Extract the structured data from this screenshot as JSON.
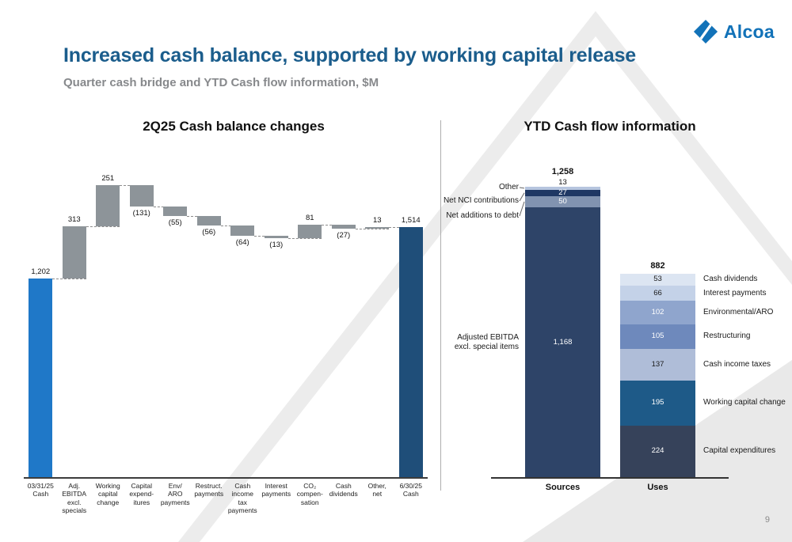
{
  "page": {
    "logo_text": "Alcoa",
    "title": "Increased cash balance, supported by working capital release",
    "subtitle": "Quarter cash bridge and YTD Cash flow information, $M",
    "page_number": "9"
  },
  "colors": {
    "title_blue": "#1B5D8C",
    "subtitle_gray": "#87898C",
    "logo_blue": "#1272B8",
    "waterfall_start": "#1F78C8",
    "waterfall_delta": "#8D9499",
    "waterfall_end": "#1F4E79"
  },
  "chart_data": [
    {
      "type": "waterfall",
      "title": "2Q25 Cash balance changes",
      "unit": "$M",
      "bars": [
        {
          "lines": [
            "03/31/25",
            "Cash"
          ],
          "value": 1202,
          "display": "1,202",
          "kind": "total",
          "color": "#1F78C8"
        },
        {
          "lines": [
            "Adj.",
            "EBITDA",
            "excl.",
            "specials"
          ],
          "value": 313,
          "display": "313",
          "kind": "delta",
          "color": "#8D9499"
        },
        {
          "lines": [
            "Working",
            "capital",
            "change"
          ],
          "value": 251,
          "display": "251",
          "kind": "delta",
          "color": "#8D9499"
        },
        {
          "lines": [
            "Capital",
            "expend-",
            "itures"
          ],
          "value": -131,
          "display": "(131)",
          "kind": "delta",
          "color": "#8D9499"
        },
        {
          "lines": [
            "Env/",
            "ARO",
            "payments"
          ],
          "value": -55,
          "display": "(55)",
          "kind": "delta",
          "color": "#8D9499"
        },
        {
          "lines": [
            "Restruct.",
            "payments"
          ],
          "value": -56,
          "display": "(56)",
          "kind": "delta",
          "color": "#8D9499"
        },
        {
          "lines": [
            "Cash",
            "income",
            "tax",
            "payments"
          ],
          "value": -64,
          "display": "(64)",
          "kind": "delta",
          "color": "#8D9499"
        },
        {
          "lines": [
            "Interest",
            "payments"
          ],
          "value": -13,
          "display": "(13)",
          "kind": "delta",
          "color": "#8D9499"
        },
        {
          "lines": [
            "CO₂",
            "compen-",
            "sation"
          ],
          "value": 81,
          "display": "81",
          "kind": "delta",
          "color": "#8D9499"
        },
        {
          "lines": [
            "Cash",
            "dividends"
          ],
          "value": -27,
          "display": "(27)",
          "kind": "delta",
          "color": "#8D9499"
        },
        {
          "lines": [
            "Other,",
            "net"
          ],
          "value": 13,
          "display": "13",
          "kind": "delta",
          "color": "#8D9499"
        },
        {
          "lines": [
            "6/30/25",
            "Cash"
          ],
          "value": 1514,
          "display": "1,514",
          "kind": "total",
          "color": "#1F4E79"
        }
      ]
    },
    {
      "type": "stacked-bar",
      "title": "YTD Cash flow information",
      "unit": "$M",
      "bars": [
        {
          "name": "Sources",
          "total": 1258,
          "total_display": "1,258",
          "label_side": "left",
          "segments_top_down": [
            {
              "label": "Other",
              "value": 13,
              "display": "13",
              "color": "#B6C5DE",
              "outside": true
            },
            {
              "label": "Net NCI contributions",
              "value": 27,
              "display": "27",
              "color": "#1F3864",
              "text_color": "#FFFFFF"
            },
            {
              "label": "Net additions to debt",
              "value": 50,
              "display": "50",
              "color": "#8193B0",
              "text_color": "#FFFFFF"
            },
            {
              "label": "Adjusted EBITDA excl. special items",
              "label_lines": [
                "Adjusted EBITDA",
                "excl. special items"
              ],
              "value": 1168,
              "display": "1,168",
              "color": "#2E4468",
              "text_color": "#FFFFFF"
            }
          ]
        },
        {
          "name": "Uses",
          "total": 882,
          "total_display": "882",
          "label_side": "right",
          "segments_top_down": [
            {
              "label": "Cash dividends",
              "value": 53,
              "display": "53",
              "color": "#DCE5F2",
              "text_color": "#1A1A1A"
            },
            {
              "label": "Interest payments",
              "value": 66,
              "display": "66",
              "color": "#C4D2E8",
              "text_color": "#1A1A1A"
            },
            {
              "label": "Environmental/ARO",
              "value": 102,
              "display": "102",
              "color": "#8FA5CD",
              "text_color": "#FFFFFF"
            },
            {
              "label": "Restructuring",
              "value": 105,
              "display": "105",
              "color": "#6E89BC",
              "text_color": "#FFFFFF"
            },
            {
              "label": "Cash income taxes",
              "value": 137,
              "display": "137",
              "color": "#AFBDD8",
              "text_color": "#1A1A1A"
            },
            {
              "label": "Working capital change",
              "value": 195,
              "display": "195",
              "color": "#1E5A88",
              "text_color": "#FFFFFF"
            },
            {
              "label": "Capital expenditures",
              "value": 224,
              "display": "224",
              "color": "#36425A",
              "text_color": "#FFFFFF"
            }
          ]
        }
      ]
    }
  ]
}
